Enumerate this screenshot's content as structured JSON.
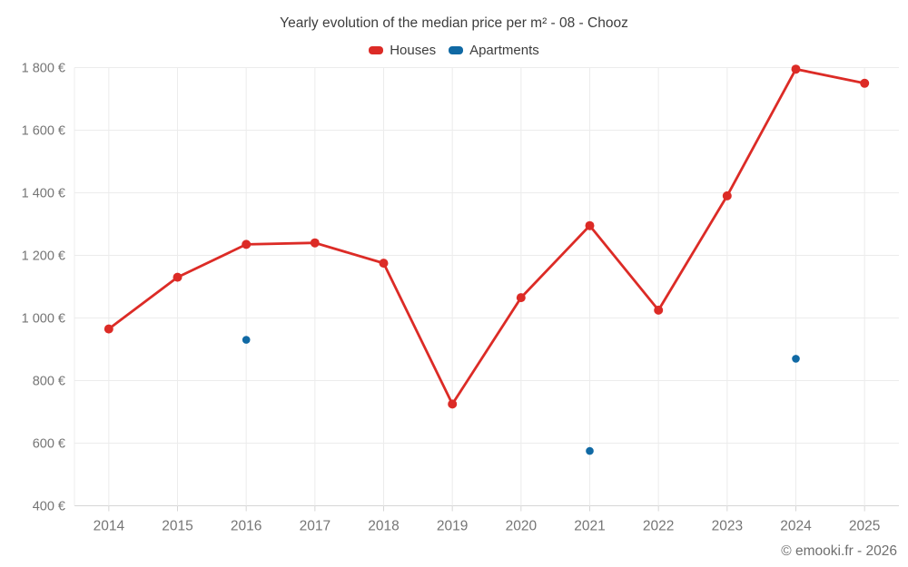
{
  "title": "Yearly evolution of the median price per m² - 08 - Chooz",
  "footer_credit": "© emooki.fr - 2026",
  "colors": {
    "houses": "#dc2b26",
    "apartments": "#1069a4",
    "gridline": "#ececec",
    "axis_line": "#d6d6d6",
    "tick": "#d6d6d6",
    "axis_text": "#757575",
    "title_text": "#3d3d3d",
    "background": "#ffffff"
  },
  "chart_data": {
    "type": "line",
    "title": "Yearly evolution of the median price per m² - 08 - Chooz",
    "categories": [
      "2014",
      "2015",
      "2016",
      "2017",
      "2018",
      "2019",
      "2020",
      "2021",
      "2022",
      "2023",
      "2024",
      "2025"
    ],
    "series": [
      {
        "name": "Houses",
        "type": "line",
        "color": "#dc2b26",
        "values": [
          965,
          1130,
          1235,
          1240,
          1175,
          725,
          1065,
          1295,
          1025,
          1390,
          1795,
          1750
        ]
      },
      {
        "name": "Apartments",
        "type": "scatter",
        "color": "#1069a4",
        "values": [
          null,
          null,
          930,
          null,
          null,
          null,
          null,
          575,
          null,
          null,
          870,
          null
        ]
      }
    ],
    "xlabel": "",
    "ylabel": "",
    "ylim": [
      400,
      1800
    ],
    "yticks": [
      400,
      600,
      800,
      1000,
      1200,
      1400,
      1600,
      1800
    ],
    "ytick_labels": [
      "400 €",
      "600 €",
      "800 €",
      "1 000 €",
      "1 200 €",
      "1 400 €",
      "1 600 €",
      "1 800 €"
    ],
    "grid": true,
    "legend_position": "top"
  }
}
